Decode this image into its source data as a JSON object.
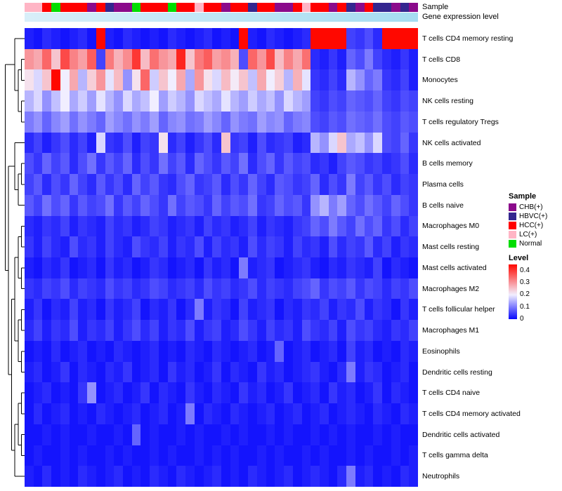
{
  "annotations": {
    "sample_label": "Sample",
    "expression_label": "Gene expression level"
  },
  "legend": {
    "sample_title": "Sample",
    "sample_items": [
      {
        "label": "CHB(+)",
        "color": "#8B0A8B"
      },
      {
        "label": "HBVC(+)",
        "color": "#34268F"
      },
      {
        "label": "HCC(+)",
        "color": "#FF0000"
      },
      {
        "label": "LC(+)",
        "color": "#FFB5C5"
      },
      {
        "label": "Normal",
        "color": "#00DD00"
      }
    ],
    "level_title": "Level",
    "level_ticks": [
      "0.4",
      "0.3",
      "0.2",
      "0.1",
      "0"
    ]
  },
  "chart_data": {
    "type": "heatmap",
    "title": "",
    "rows": [
      "T cells CD4 memory resting",
      "T cells CD8",
      "Monocytes",
      "NK cells resting",
      "T cells regulatory Tregs",
      "NK cells activated",
      "B cells memory",
      "Plasma cells",
      "B cells naive",
      "Macrophages M0",
      "Mast cells resting",
      "Mast cells activated",
      "Macrophages M2",
      "T cells follicular helper",
      "Macrophages M1",
      "Eosinophils",
      "Dendritic cells resting",
      "T cells CD4 naive",
      "T cells CD4 memory activated",
      "Dendritic cells activated",
      "T cells gamma delta",
      "Neutrophils"
    ],
    "column_annotations": {
      "sample": [
        "LC(+)",
        "LC(+)",
        "HCC(+)",
        "Normal",
        "HCC(+)",
        "HCC(+)",
        "HCC(+)",
        "CHB(+)",
        "HCC(+)",
        "HBVC(+)",
        "CHB(+)",
        "CHB(+)",
        "Normal",
        "HCC(+)",
        "HCC(+)",
        "HCC(+)",
        "Normal",
        "HCC(+)",
        "HCC(+)",
        "LC(+)",
        "HCC(+)",
        "HCC(+)",
        "CHB(+)",
        "HCC(+)",
        "HCC(+)",
        "HBVC(+)",
        "HCC(+)",
        "HCC(+)",
        "CHB(+)",
        "CHB(+)",
        "HCC(+)",
        "LC(+)",
        "HCC(+)",
        "HCC(+)",
        "CHB(+)",
        "HCC(+)",
        "HBVC(+)",
        "CHB(+)",
        "HCC(+)",
        "HBVC(+)",
        "HBVC(+)",
        "CHB(+)",
        "HBVC(+)",
        "CHB(+)"
      ]
    },
    "sample_colors": {
      "CHB(+)": "#8B0A8B",
      "HBVC(+)": "#34268F",
      "HCC(+)": "#FF0000",
      "LC(+)": "#FFB5C5",
      "Normal": "#00DD00"
    },
    "expression_bar_colors": [
      "#D8EFF9",
      "#A5DCF1"
    ],
    "value_range": [
      0,
      0.45
    ],
    "colormap": {
      "low": "#0808FD",
      "mid": "#F4F1FF",
      "high": "#FF0800"
    },
    "values": [
      [
        0.02,
        0.01,
        0.03,
        0.02,
        0.01,
        0.02,
        0.03,
        0.01,
        0.45,
        0.02,
        0.01,
        0.03,
        0.02,
        0.01,
        0.02,
        0.01,
        0.03,
        0.02,
        0.01,
        0.02,
        0.03,
        0.01,
        0.02,
        0.01,
        0.45,
        0.02,
        0.01,
        0.03,
        0.02,
        0.01,
        0.02,
        0.03,
        0.45,
        0.45,
        0.45,
        0.45,
        0.05,
        0.04,
        0.06,
        0.03,
        0.45,
        0.45,
        0.45,
        0.45
      ],
      [
        0.3,
        0.28,
        0.35,
        0.25,
        0.38,
        0.32,
        0.29,
        0.36,
        0.05,
        0.33,
        0.27,
        0.31,
        0.4,
        0.26,
        0.34,
        0.3,
        0.28,
        0.42,
        0.25,
        0.33,
        0.36,
        0.29,
        0.31,
        0.27,
        0.06,
        0.35,
        0.3,
        0.38,
        0.26,
        0.32,
        0.28,
        0.34,
        0.03,
        0.02,
        0.04,
        0.02,
        0.08,
        0.06,
        0.1,
        0.05,
        0.03,
        0.02,
        0.04,
        0.02
      ],
      [
        0.22,
        0.18,
        0.25,
        0.45,
        0.2,
        0.28,
        0.15,
        0.24,
        0.3,
        0.19,
        0.26,
        0.12,
        0.22,
        0.35,
        0.17,
        0.25,
        0.2,
        0.28,
        0.14,
        0.3,
        0.22,
        0.18,
        0.26,
        0.21,
        0.25,
        0.16,
        0.28,
        0.2,
        0.24,
        0.15,
        0.27,
        0.19,
        0.04,
        0.03,
        0.05,
        0.03,
        0.15,
        0.12,
        0.08,
        0.1,
        0.04,
        0.03,
        0.05,
        0.02
      ],
      [
        0.15,
        0.18,
        0.12,
        0.16,
        0.2,
        0.14,
        0.17,
        0.13,
        0.19,
        0.15,
        0.12,
        0.18,
        0.14,
        0.16,
        0.2,
        0.13,
        0.17,
        0.15,
        0.12,
        0.18,
        0.16,
        0.14,
        0.19,
        0.15,
        0.13,
        0.17,
        0.14,
        0.16,
        0.12,
        0.18,
        0.15,
        0.13,
        0.05,
        0.04,
        0.06,
        0.05,
        0.08,
        0.07,
        0.06,
        0.08,
        0.05,
        0.04,
        0.06,
        0.05
      ],
      [
        0.1,
        0.12,
        0.08,
        0.11,
        0.13,
        0.09,
        0.12,
        0.1,
        0.08,
        0.13,
        0.11,
        0.09,
        0.12,
        0.1,
        0.13,
        0.08,
        0.11,
        0.12,
        0.09,
        0.1,
        0.13,
        0.11,
        0.08,
        0.12,
        0.1,
        0.09,
        0.13,
        0.11,
        0.12,
        0.08,
        0.1,
        0.11,
        0.06,
        0.05,
        0.07,
        0.06,
        0.09,
        0.08,
        0.07,
        0.09,
        0.06,
        0.05,
        0.07,
        0.06
      ],
      [
        0.03,
        0.05,
        0.02,
        0.04,
        0.06,
        0.03,
        0.05,
        0.02,
        0.18,
        0.04,
        0.03,
        0.06,
        0.02,
        0.05,
        0.04,
        0.22,
        0.03,
        0.05,
        0.02,
        0.04,
        0.06,
        0.03,
        0.25,
        0.04,
        0.05,
        0.02,
        0.06,
        0.03,
        0.04,
        0.05,
        0.02,
        0.03,
        0.15,
        0.12,
        0.18,
        0.25,
        0.14,
        0.16,
        0.12,
        0.18,
        0.06,
        0.05,
        0.08,
        0.04
      ],
      [
        0.06,
        0.04,
        0.08,
        0.05,
        0.07,
        0.03,
        0.06,
        0.09,
        0.04,
        0.07,
        0.05,
        0.08,
        0.03,
        0.06,
        0.04,
        0.09,
        0.05,
        0.07,
        0.03,
        0.08,
        0.06,
        0.04,
        0.07,
        0.05,
        0.09,
        0.03,
        0.06,
        0.08,
        0.04,
        0.07,
        0.05,
        0.06,
        0.03,
        0.04,
        0.02,
        0.05,
        0.07,
        0.06,
        0.04,
        0.05,
        0.03,
        0.04,
        0.06,
        0.03
      ],
      [
        0.05,
        0.07,
        0.03,
        0.06,
        0.04,
        0.08,
        0.05,
        0.03,
        0.07,
        0.04,
        0.06,
        0.03,
        0.08,
        0.05,
        0.07,
        0.04,
        0.03,
        0.06,
        0.08,
        0.04,
        0.05,
        0.07,
        0.03,
        0.06,
        0.04,
        0.08,
        0.05,
        0.03,
        0.07,
        0.06,
        0.04,
        0.05,
        0.08,
        0.03,
        0.06,
        0.04,
        0.1,
        0.05,
        0.07,
        0.04,
        0.06,
        0.03,
        0.05,
        0.04
      ],
      [
        0.07,
        0.05,
        0.09,
        0.06,
        0.08,
        0.04,
        0.07,
        0.05,
        0.06,
        0.09,
        0.04,
        0.07,
        0.05,
        0.08,
        0.06,
        0.04,
        0.09,
        0.05,
        0.07,
        0.06,
        0.04,
        0.08,
        0.05,
        0.07,
        0.06,
        0.09,
        0.04,
        0.05,
        0.08,
        0.06,
        0.07,
        0.04,
        0.12,
        0.15,
        0.1,
        0.13,
        0.08,
        0.06,
        0.09,
        0.07,
        0.05,
        0.08,
        0.06,
        0.04
      ],
      [
        0.03,
        0.02,
        0.04,
        0.03,
        0.05,
        0.02,
        0.04,
        0.03,
        0.02,
        0.05,
        0.03,
        0.04,
        0.02,
        0.03,
        0.05,
        0.04,
        0.02,
        0.03,
        0.04,
        0.02,
        0.05,
        0.03,
        0.04,
        0.02,
        0.03,
        0.05,
        0.02,
        0.04,
        0.03,
        0.02,
        0.04,
        0.05,
        0.08,
        0.06,
        0.1,
        0.07,
        0.05,
        0.09,
        0.06,
        0.08,
        0.04,
        0.06,
        0.03,
        0.05
      ],
      [
        0.04,
        0.02,
        0.05,
        0.03,
        0.02,
        0.06,
        0.03,
        0.04,
        0.02,
        0.05,
        0.03,
        0.02,
        0.06,
        0.04,
        0.03,
        0.05,
        0.02,
        0.04,
        0.03,
        0.06,
        0.02,
        0.05,
        0.03,
        0.04,
        0.02,
        0.06,
        0.03,
        0.05,
        0.04,
        0.02,
        0.05,
        0.03,
        0.04,
        0.02,
        0.06,
        0.03,
        0.05,
        0.04,
        0.07,
        0.03,
        0.05,
        0.02,
        0.04,
        0.03
      ],
      [
        0.02,
        0.01,
        0.03,
        0.02,
        0.04,
        0.01,
        0.02,
        0.03,
        0.01,
        0.04,
        0.02,
        0.03,
        0.01,
        0.02,
        0.04,
        0.03,
        0.01,
        0.02,
        0.03,
        0.01,
        0.04,
        0.02,
        0.03,
        0.01,
        0.1,
        0.02,
        0.03,
        0.04,
        0.01,
        0.02,
        0.03,
        0.04,
        0.02,
        0.01,
        0.03,
        0.02,
        0.04,
        0.03,
        0.02,
        0.05,
        0.01,
        0.03,
        0.02,
        0.01
      ],
      [
        0.04,
        0.03,
        0.05,
        0.04,
        0.06,
        0.03,
        0.05,
        0.04,
        0.03,
        0.06,
        0.04,
        0.05,
        0.03,
        0.04,
        0.06,
        0.05,
        0.03,
        0.04,
        0.05,
        0.03,
        0.06,
        0.04,
        0.05,
        0.03,
        0.04,
        0.06,
        0.03,
        0.05,
        0.04,
        0.03,
        0.05,
        0.06,
        0.08,
        0.04,
        0.06,
        0.05,
        0.07,
        0.04,
        0.06,
        0.05,
        0.03,
        0.05,
        0.04,
        0.06
      ],
      [
        0.02,
        0.04,
        0.01,
        0.03,
        0.02,
        0.05,
        0.02,
        0.03,
        0.01,
        0.04,
        0.02,
        0.03,
        0.05,
        0.01,
        0.03,
        0.02,
        0.04,
        0.01,
        0.03,
        0.1,
        0.02,
        0.04,
        0.03,
        0.01,
        0.05,
        0.02,
        0.03,
        0.04,
        0.01,
        0.03,
        0.02,
        0.04,
        0.03,
        0.05,
        0.02,
        0.04,
        0.03,
        0.06,
        0.02,
        0.04,
        0.03,
        0.01,
        0.04,
        0.02
      ],
      [
        0.03,
        0.05,
        0.02,
        0.04,
        0.03,
        0.06,
        0.02,
        0.04,
        0.03,
        0.05,
        0.02,
        0.04,
        0.06,
        0.03,
        0.05,
        0.02,
        0.04,
        0.03,
        0.06,
        0.02,
        0.04,
        0.05,
        0.02,
        0.03,
        0.06,
        0.04,
        0.02,
        0.05,
        0.03,
        0.04,
        0.02,
        0.06,
        0.04,
        0.03,
        0.05,
        0.02,
        0.06,
        0.04,
        0.05,
        0.03,
        0.02,
        0.04,
        0.03,
        0.05
      ],
      [
        0.01,
        0.02,
        0.01,
        0.03,
        0.01,
        0.02,
        0.03,
        0.01,
        0.02,
        0.01,
        0.03,
        0.02,
        0.01,
        0.02,
        0.03,
        0.01,
        0.02,
        0.01,
        0.03,
        0.02,
        0.01,
        0.03,
        0.02,
        0.01,
        0.02,
        0.03,
        0.01,
        0.02,
        0.08,
        0.01,
        0.02,
        0.03,
        0.01,
        0.02,
        0.03,
        0.01,
        0.05,
        0.02,
        0.03,
        0.01,
        0.02,
        0.01,
        0.03,
        0.02
      ],
      [
        0.02,
        0.03,
        0.01,
        0.02,
        0.04,
        0.01,
        0.03,
        0.02,
        0.01,
        0.03,
        0.02,
        0.04,
        0.01,
        0.02,
        0.03,
        0.01,
        0.04,
        0.02,
        0.03,
        0.01,
        0.02,
        0.04,
        0.01,
        0.03,
        0.02,
        0.01,
        0.04,
        0.02,
        0.03,
        0.01,
        0.02,
        0.03,
        0.04,
        0.02,
        0.01,
        0.03,
        0.1,
        0.02,
        0.04,
        0.03,
        0.01,
        0.02,
        0.03,
        0.01
      ],
      [
        0.01,
        0.02,
        0.03,
        0.01,
        0.02,
        0.01,
        0.04,
        0.12,
        0.01,
        0.02,
        0.03,
        0.01,
        0.02,
        0.04,
        0.01,
        0.03,
        0.02,
        0.01,
        0.04,
        0.02,
        0.01,
        0.03,
        0.02,
        0.01,
        0.04,
        0.02,
        0.03,
        0.01,
        0.02,
        0.04,
        0.01,
        0.02,
        0.03,
        0.01,
        0.04,
        0.02,
        0.03,
        0.01,
        0.02,
        0.04,
        0.01,
        0.03,
        0.02,
        0.01
      ],
      [
        0.01,
        0.03,
        0.01,
        0.02,
        0.03,
        0.01,
        0.02,
        0.01,
        0.03,
        0.02,
        0.01,
        0.02,
        0.03,
        0.01,
        0.02,
        0.03,
        0.01,
        0.02,
        0.1,
        0.01,
        0.03,
        0.02,
        0.01,
        0.03,
        0.02,
        0.01,
        0.02,
        0.03,
        0.01,
        0.02,
        0.03,
        0.01,
        0.02,
        0.03,
        0.01,
        0.02,
        0.03,
        0.02,
        0.01,
        0.03,
        0.02,
        0.01,
        0.03,
        0.02
      ],
      [
        0.01,
        0.01,
        0.02,
        0.01,
        0.02,
        0.01,
        0.01,
        0.02,
        0.01,
        0.01,
        0.02,
        0.01,
        0.08,
        0.01,
        0.02,
        0.01,
        0.01,
        0.02,
        0.01,
        0.02,
        0.01,
        0.01,
        0.02,
        0.01,
        0.02,
        0.01,
        0.01,
        0.02,
        0.01,
        0.02,
        0.01,
        0.01,
        0.02,
        0.01,
        0.02,
        0.01,
        0.02,
        0.01,
        0.01,
        0.02,
        0.01,
        0.02,
        0.01,
        0.01
      ],
      [
        0.01,
        0.02,
        0.01,
        0.01,
        0.02,
        0.01,
        0.02,
        0.01,
        0.01,
        0.02,
        0.01,
        0.02,
        0.01,
        0.01,
        0.02,
        0.01,
        0.02,
        0.01,
        0.01,
        0.02,
        0.01,
        0.02,
        0.01,
        0.02,
        0.01,
        0.01,
        0.02,
        0.01,
        0.02,
        0.01,
        0.01,
        0.02,
        0.01,
        0.02,
        0.01,
        0.01,
        0.02,
        0.01,
        0.02,
        0.01,
        0.01,
        0.02,
        0.01,
        0.02
      ],
      [
        0.02,
        0.01,
        0.03,
        0.01,
        0.02,
        0.01,
        0.03,
        0.02,
        0.01,
        0.02,
        0.03,
        0.01,
        0.02,
        0.01,
        0.03,
        0.02,
        0.01,
        0.03,
        0.02,
        0.01,
        0.02,
        0.03,
        0.01,
        0.02,
        0.01,
        0.03,
        0.02,
        0.01,
        0.02,
        0.03,
        0.01,
        0.02,
        0.03,
        0.02,
        0.01,
        0.03,
        0.1,
        0.02,
        0.03,
        0.01,
        0.02,
        0.01,
        0.03,
        0.02
      ]
    ]
  }
}
